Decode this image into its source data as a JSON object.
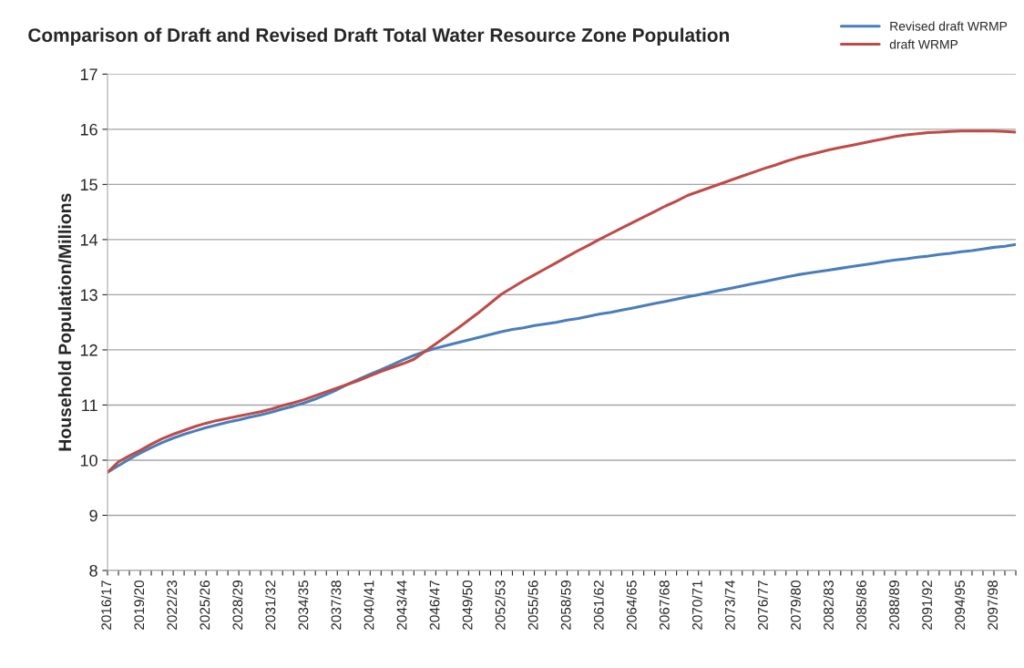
{
  "chart_data": {
    "type": "line",
    "title": "Comparison of Draft and Revised Draft Total Water Resource Zone Population",
    "ylabel": "Household Population/Millions",
    "categories": [
      "2016/17",
      null,
      null,
      "2019/20",
      null,
      null,
      "2022/23",
      null,
      null,
      "2025/26",
      null,
      null,
      "2028/29",
      null,
      null,
      "2031/32",
      null,
      null,
      "2034/35",
      null,
      null,
      "2037/38",
      null,
      null,
      "2040/41",
      null,
      null,
      "2043/44",
      null,
      null,
      "2046/47",
      null,
      null,
      "2049/50",
      null,
      null,
      "2052/53",
      null,
      null,
      "2055/56",
      null,
      null,
      "2058/59",
      null,
      null,
      "2061/62",
      null,
      null,
      "2064/65",
      null,
      null,
      "2067/68",
      null,
      null,
      "2070/71",
      null,
      null,
      "2073/74",
      null,
      null,
      "2076/77",
      null,
      null,
      "2079/80",
      null,
      null,
      "2082/83",
      null,
      null,
      "2085/86",
      null,
      null,
      "2088/89",
      null,
      null,
      "2091/92",
      null,
      null,
      "2094/95",
      null,
      null,
      "2097/98",
      null,
      null
    ],
    "series": [
      {
        "name": "Revised draft WRMP",
        "color": "#4a7ebb",
        "values": [
          9.78,
          9.9,
          10.02,
          10.13,
          10.23,
          10.32,
          10.4,
          10.47,
          10.53,
          10.59,
          10.64,
          10.69,
          10.73,
          10.78,
          10.82,
          10.87,
          10.93,
          10.98,
          11.04,
          11.11,
          11.19,
          11.28,
          11.38,
          11.47,
          11.56,
          11.64,
          11.73,
          11.82,
          11.9,
          11.97,
          12.03,
          12.08,
          12.13,
          12.18,
          12.23,
          12.28,
          12.33,
          12.37,
          12.4,
          12.44,
          12.47,
          12.5,
          12.54,
          12.57,
          12.61,
          12.65,
          12.68,
          12.72,
          12.76,
          12.8,
          12.84,
          12.88,
          12.92,
          12.96,
          13.0,
          13.04,
          13.08,
          13.12,
          13.16,
          13.2,
          13.24,
          13.28,
          13.32,
          13.36,
          13.39,
          13.42,
          13.45,
          13.48,
          13.51,
          13.54,
          13.57,
          13.6,
          13.63,
          13.65,
          13.68,
          13.7,
          13.73,
          13.75,
          13.78,
          13.8,
          13.83,
          13.86,
          13.88,
          13.91
        ]
      },
      {
        "name": "draft WRMP",
        "color": "#be4b48",
        "values": [
          9.78,
          9.97,
          10.08,
          10.18,
          10.29,
          10.39,
          10.47,
          10.54,
          10.61,
          10.67,
          10.72,
          10.76,
          10.8,
          10.84,
          10.88,
          10.93,
          10.99,
          11.04,
          11.1,
          11.17,
          11.24,
          11.31,
          11.38,
          11.45,
          11.53,
          11.61,
          11.68,
          11.75,
          11.83,
          11.97,
          12.11,
          12.25,
          12.39,
          12.54,
          12.69,
          12.85,
          13.01,
          13.13,
          13.25,
          13.36,
          13.47,
          13.58,
          13.69,
          13.8,
          13.9,
          14.01,
          14.11,
          14.21,
          14.31,
          14.41,
          14.51,
          14.61,
          14.7,
          14.8,
          14.87,
          14.94,
          15.01,
          15.08,
          15.15,
          15.22,
          15.29,
          15.35,
          15.42,
          15.48,
          15.53,
          15.58,
          15.63,
          15.67,
          15.71,
          15.75,
          15.79,
          15.83,
          15.87,
          15.9,
          15.92,
          15.94,
          15.95,
          15.96,
          15.97,
          15.97,
          15.97,
          15.97,
          15.96,
          15.95
        ]
      }
    ],
    "ylim": [
      8,
      17
    ],
    "yticks": [
      8,
      9,
      10,
      11,
      12,
      13,
      14,
      15,
      16,
      17
    ],
    "grid": "y",
    "legend": "top right",
    "marker": "none",
    "line_style": "solid"
  }
}
